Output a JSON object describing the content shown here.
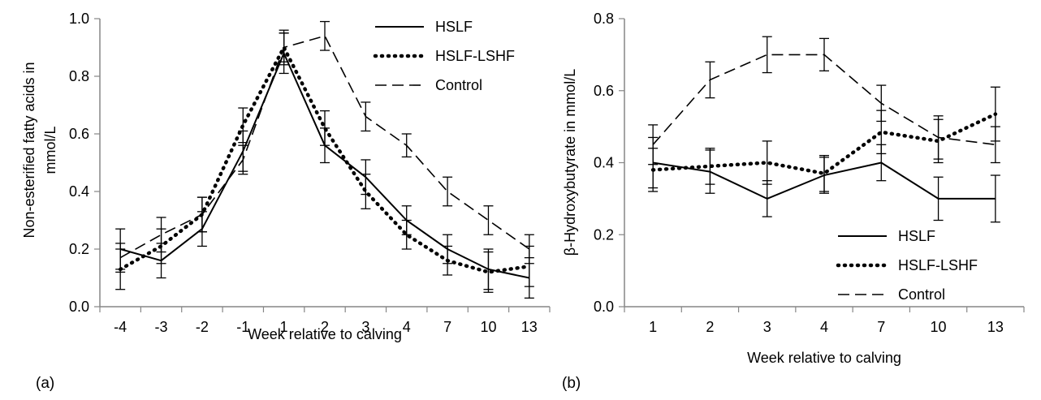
{
  "chart_data": [
    {
      "panel_label": "(a)",
      "type": "line",
      "xlabel": "Week relative to calving",
      "ylabel": "Non-esterified fatty acids in mmol/L",
      "ylabel_lines": [
        "Non-esterified fatty acids in",
        "mmol/L"
      ],
      "ylim": [
        0.0,
        1.0
      ],
      "yticks": [
        0.0,
        0.2,
        0.4,
        0.6,
        0.8,
        1.0
      ],
      "ytick_labels": [
        "0.0",
        "0.2",
        "0.4",
        "0.6",
        "0.8",
        "1.0"
      ],
      "categories": [
        "-4",
        "-3",
        "-2",
        "-1",
        "1",
        "2",
        "3",
        "4",
        "7",
        "10",
        "13"
      ],
      "grid": false,
      "legend": "top-right",
      "series": [
        {
          "name": "HSLF",
          "style": "solid",
          "values": [
            0.2,
            0.16,
            0.27,
            0.54,
            0.88,
            0.56,
            0.45,
            0.3,
            0.2,
            0.13,
            0.1
          ],
          "errors": [
            0.07,
            0.06,
            0.06,
            0.07,
            0.07,
            0.06,
            0.06,
            0.05,
            0.05,
            0.07,
            0.07
          ]
        },
        {
          "name": "HSLF-LSHF",
          "style": "dotted",
          "values": [
            0.13,
            0.21,
            0.32,
            0.63,
            0.9,
            0.62,
            0.4,
            0.25,
            0.16,
            0.12,
            0.14
          ],
          "errors": [
            0.07,
            0.06,
            0.06,
            0.06,
            0.06,
            0.06,
            0.06,
            0.05,
            0.05,
            0.07,
            0.07
          ]
        },
        {
          "name": "Control",
          "style": "dashed",
          "values": [
            0.17,
            0.25,
            0.32,
            0.51,
            0.9,
            0.94,
            0.66,
            0.56,
            0.4,
            0.3,
            0.2
          ],
          "errors": [
            0.05,
            0.06,
            0.06,
            0.05,
            0.05,
            0.05,
            0.05,
            0.04,
            0.05,
            0.05,
            0.05
          ]
        }
      ]
    },
    {
      "panel_label": "(b)",
      "type": "line",
      "xlabel": "Week relative to calving",
      "ylabel": "β-Hydroxybutyrate in mmol/L",
      "ylim": [
        0.0,
        0.8
      ],
      "yticks": [
        0.0,
        0.2,
        0.4,
        0.6,
        0.8
      ],
      "ytick_labels": [
        "0.0",
        "0.2",
        "0.4",
        "0.6",
        "0.8"
      ],
      "categories": [
        "1",
        "2",
        "3",
        "4",
        "7",
        "10",
        "13"
      ],
      "grid": false,
      "legend": "bottom-right",
      "series": [
        {
          "name": "HSLF",
          "style": "solid",
          "values": [
            0.4,
            0.375,
            0.3,
            0.365,
            0.4,
            0.3,
            0.3
          ],
          "errors": [
            0.07,
            0.06,
            0.05,
            0.05,
            0.05,
            0.06,
            0.065
          ]
        },
        {
          "name": "HSLF-LSHF",
          "style": "dotted",
          "values": [
            0.38,
            0.39,
            0.4,
            0.37,
            0.485,
            0.46,
            0.535
          ],
          "errors": [
            0.06,
            0.05,
            0.06,
            0.05,
            0.06,
            0.06,
            0.075
          ]
        },
        {
          "name": "Control",
          "style": "dashed",
          "values": [
            0.45,
            0.63,
            0.7,
            0.7,
            0.565,
            0.47,
            0.45
          ],
          "errors": [
            0.055,
            0.05,
            0.05,
            0.045,
            0.05,
            0.06,
            0.05
          ]
        }
      ]
    }
  ],
  "series_styles": {
    "solid": {
      "dash": "",
      "width": 2,
      "color": "#000000"
    },
    "dotted": {
      "dash": "1 7",
      "width": 4.5,
      "color": "#000000",
      "cap": "round"
    },
    "dashed": {
      "dash": "14 7",
      "width": 1.6,
      "color": "#000000"
    }
  }
}
